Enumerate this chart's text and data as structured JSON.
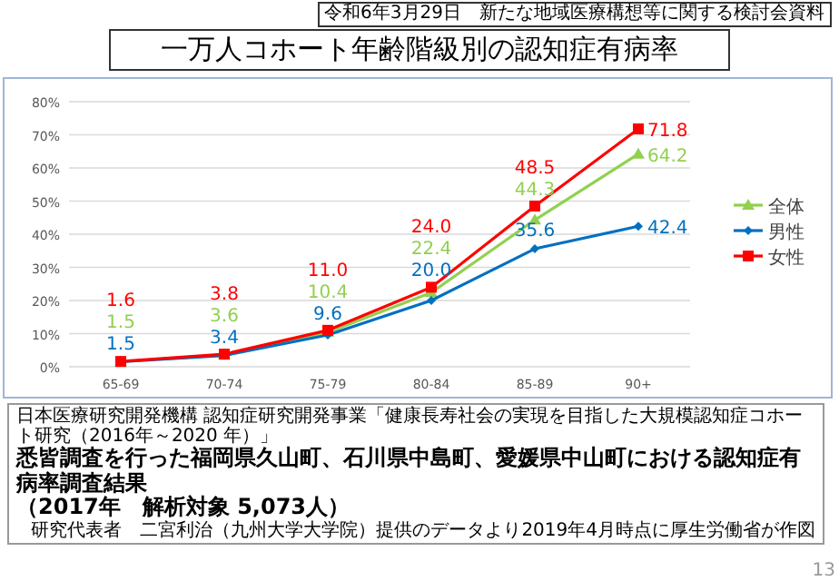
{
  "chart_data": {
    "type": "line",
    "title": "一万人コホート年齢階級別の認知症有病率",
    "annotations": [
      "令和6年3月29日　新たな地域医療構想等に関する検討会資料",
      "日本医療研究開発機構 認知症研究開発事業「健康長寿社会の実現を目指した大規模認知症コホート研究（2016年～2020 年）」",
      "悉皆調査を行った福岡県久山町、石川県中島町、愛媛県中山町における認知症有病率調査結果",
      "（2017年　解析対象 5,073人）",
      "研究代表者　二宮利治（九州大学大学院）提供のデータより2019年4月時点に厚生労働省が作図",
      "13"
    ],
    "categories": [
      "65-69",
      "70-74",
      "75-79",
      "80-84",
      "85-89",
      "90+"
    ],
    "ylim": [
      0,
      80
    ],
    "yticks": [
      {
        "value": 0,
        "label": "0%"
      },
      {
        "value": 10,
        "label": "10%"
      },
      {
        "value": 20,
        "label": "20%"
      },
      {
        "value": 30,
        "label": "30%"
      },
      {
        "value": 40,
        "label": "40%"
      },
      {
        "value": 50,
        "label": "50%"
      },
      {
        "value": 60,
        "label": "60%"
      },
      {
        "value": 70,
        "label": "70%"
      },
      {
        "value": 80,
        "label": "80%"
      }
    ],
    "grid": "y",
    "legend": "right",
    "series": [
      {
        "name": "全体",
        "color": "#92d050",
        "marker": "triangle",
        "values": [
          1.5,
          3.6,
          10.4,
          22.4,
          44.3,
          64.2
        ],
        "value_labels": [
          "1.5",
          "3.6",
          "10.4",
          "22.4",
          "44.3",
          "64.2"
        ]
      },
      {
        "name": "男性",
        "color": "#0070c0",
        "marker": "diamond",
        "values": [
          1.5,
          3.4,
          9.6,
          20.0,
          35.6,
          42.4
        ],
        "value_labels": [
          "1.5",
          "3.4",
          "9.6",
          "20.0",
          "35.6",
          "42.4"
        ]
      },
      {
        "name": "女性",
        "color": "#ff0000",
        "marker": "square",
        "values": [
          1.6,
          3.8,
          11.0,
          24.0,
          48.5,
          71.8
        ],
        "value_labels": [
          "1.6",
          "3.8",
          "11.0",
          "24.0",
          "48.5",
          "71.8"
        ]
      }
    ]
  }
}
